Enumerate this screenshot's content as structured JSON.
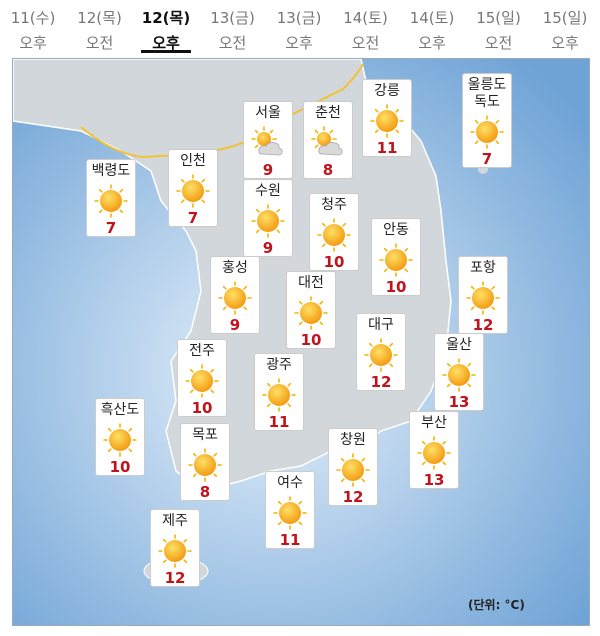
{
  "tabs": [
    {
      "day": "11(수)",
      "time": "오후"
    },
    {
      "day": "12(목)",
      "time": "오전"
    },
    {
      "day": "12(목)",
      "time": "오후"
    },
    {
      "day": "13(금)",
      "time": "오전"
    },
    {
      "day": "13(금)",
      "time": "오후"
    },
    {
      "day": "14(토)",
      "time": "오전"
    },
    {
      "day": "14(토)",
      "time": "오후"
    },
    {
      "day": "15(일)",
      "time": "오전"
    },
    {
      "day": "15(일)",
      "time": "오후"
    }
  ],
  "selected_tab": 2,
  "cities": [
    {
      "name": "백령도",
      "temp": "7",
      "weather": "sunny"
    },
    {
      "name": "인천",
      "temp": "7",
      "weather": "sunny"
    },
    {
      "name": "서울",
      "temp": "9",
      "weather": "partly-cloudy"
    },
    {
      "name": "춘천",
      "temp": "8",
      "weather": "partly-cloudy"
    },
    {
      "name": "강릉",
      "temp": "11",
      "weather": "sunny"
    },
    {
      "name": "울릉도\n독도",
      "temp": "7",
      "weather": "sunny"
    },
    {
      "name": "수원",
      "temp": "9",
      "weather": "sunny"
    },
    {
      "name": "청주",
      "temp": "10",
      "weather": "sunny"
    },
    {
      "name": "안동",
      "temp": "10",
      "weather": "sunny"
    },
    {
      "name": "포항",
      "temp": "12",
      "weather": "sunny"
    },
    {
      "name": "홍성",
      "temp": "9",
      "weather": "sunny"
    },
    {
      "name": "대전",
      "temp": "10",
      "weather": "sunny"
    },
    {
      "name": "대구",
      "temp": "12",
      "weather": "sunny"
    },
    {
      "name": "울산",
      "temp": "13",
      "weather": "sunny"
    },
    {
      "name": "전주",
      "temp": "10",
      "weather": "sunny"
    },
    {
      "name": "광주",
      "temp": "11",
      "weather": "sunny"
    },
    {
      "name": "흑산도",
      "temp": "10",
      "weather": "sunny"
    },
    {
      "name": "목포",
      "temp": "8",
      "weather": "sunny"
    },
    {
      "name": "창원",
      "temp": "12",
      "weather": "sunny"
    },
    {
      "name": "부산",
      "temp": "13",
      "weather": "sunny"
    },
    {
      "name": "여수",
      "temp": "11",
      "weather": "sunny"
    },
    {
      "name": "제주",
      "temp": "12",
      "weather": "sunny"
    }
  ],
  "unit_note": "(단위: °C)"
}
